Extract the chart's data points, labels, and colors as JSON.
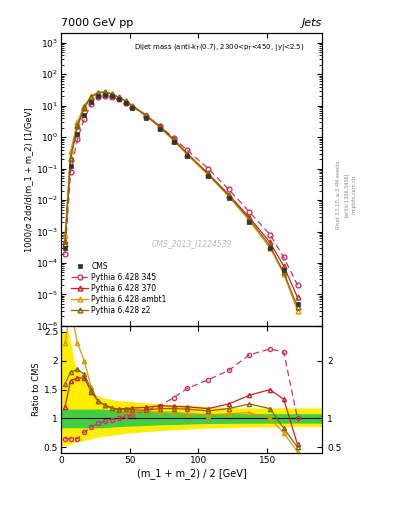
{
  "title_left": "7000 GeV pp",
  "title_right": "Jets",
  "watermark": "CMS_2013_I1224539",
  "ylabel_main": "1000/σ 2dσ/d(m_1 + m_2) [1/GeV]",
  "ylabel_ratio": "Ratio to CMS",
  "xlabel": "(m_1 + m_2) / 2 [GeV]",
  "xlim": [
    0,
    190
  ],
  "ylim_main": [
    1e-06,
    2000
  ],
  "ylim_ratio": [
    0.4,
    2.6
  ],
  "x_data": [
    3,
    7,
    12,
    17,
    22,
    27,
    32,
    37,
    42,
    47,
    52,
    62,
    72,
    82,
    92,
    107,
    122,
    137,
    152,
    162,
    172
  ],
  "cms_y": [
    0.0003,
    0.12,
    1.3,
    5.0,
    13.0,
    20.0,
    22.0,
    20.0,
    16.0,
    12.0,
    8.5,
    4.2,
    1.8,
    0.7,
    0.25,
    0.06,
    0.012,
    0.002,
    0.0003,
    6e-05,
    5e-06
  ],
  "p345_y": [
    0.0002,
    0.08,
    0.85,
    3.8,
    11.0,
    18.5,
    21.0,
    19.5,
    16.0,
    12.5,
    9.0,
    4.8,
    2.2,
    0.95,
    0.38,
    0.1,
    0.022,
    0.0042,
    0.0008,
    0.00015,
    2e-05
  ],
  "p370_y": [
    0.0004,
    0.2,
    2.2,
    8.5,
    19.0,
    26.0,
    27.0,
    23.5,
    18.5,
    14.0,
    10.0,
    5.0,
    2.2,
    0.85,
    0.3,
    0.07,
    0.015,
    0.0028,
    0.00045,
    8e-05,
    8e-06
  ],
  "pambt1_y": [
    0.0008,
    0.35,
    3.0,
    10.0,
    20.0,
    26.0,
    27.0,
    23.5,
    18.0,
    13.5,
    9.5,
    4.7,
    2.0,
    0.78,
    0.27,
    0.063,
    0.013,
    0.0022,
    0.0003,
    4.5e-05,
    3e-06
  ],
  "pz2_y": [
    0.0005,
    0.22,
    2.4,
    8.8,
    19.5,
    26.0,
    27.0,
    23.5,
    18.5,
    14.0,
    9.8,
    4.8,
    2.1,
    0.82,
    0.29,
    0.068,
    0.014,
    0.0025,
    0.00035,
    5e-05,
    4e-06
  ],
  "ratio_345": [
    0.65,
    0.65,
    0.65,
    0.76,
    0.85,
    0.92,
    0.95,
    0.98,
    1.0,
    1.04,
    1.06,
    1.14,
    1.22,
    1.36,
    1.52,
    1.67,
    1.83,
    2.1,
    2.2,
    2.15,
    1.0
  ],
  "ratio_370": [
    1.2,
    1.65,
    1.7,
    1.7,
    1.46,
    1.3,
    1.23,
    1.18,
    1.16,
    1.17,
    1.18,
    1.19,
    1.22,
    1.21,
    1.2,
    1.17,
    1.25,
    1.4,
    1.5,
    1.33,
    0.55
  ],
  "ratio_ambt1": [
    2.3,
    2.9,
    2.3,
    2.0,
    1.54,
    1.3,
    1.23,
    1.18,
    1.12,
    1.12,
    1.12,
    1.12,
    1.11,
    1.11,
    1.08,
    1.05,
    1.08,
    1.1,
    1.0,
    0.75,
    0.42
  ],
  "ratio_z2": [
    1.6,
    1.8,
    1.85,
    1.76,
    1.5,
    1.3,
    1.23,
    1.18,
    1.15,
    1.16,
    1.15,
    1.14,
    1.17,
    1.17,
    1.16,
    1.13,
    1.17,
    1.25,
    1.17,
    0.83,
    0.5
  ],
  "band_x": [
    0,
    5,
    10,
    15,
    20,
    25,
    30,
    40,
    50,
    70,
    100,
    130,
    160,
    190
  ],
  "band_green_low": [
    0.85,
    0.85,
    0.85,
    0.85,
    0.85,
    0.85,
    0.85,
    0.87,
    0.88,
    0.9,
    0.92,
    0.93,
    0.93,
    0.93
  ],
  "band_green_high": [
    1.15,
    1.15,
    1.15,
    1.15,
    1.15,
    1.15,
    1.15,
    1.13,
    1.12,
    1.1,
    1.08,
    1.07,
    1.07,
    1.07
  ],
  "band_yellow_low": [
    0.55,
    0.55,
    0.6,
    0.62,
    0.65,
    0.68,
    0.7,
    0.73,
    0.76,
    0.8,
    0.84,
    0.86,
    0.87,
    0.87
  ],
  "band_yellow_high": [
    2.5,
    2.5,
    1.9,
    1.7,
    1.5,
    1.4,
    1.35,
    1.3,
    1.28,
    1.24,
    1.2,
    1.17,
    1.17,
    1.17
  ],
  "color_cms": "#333333",
  "color_345": "#cc3366",
  "color_370": "#cc2222",
  "color_ambt1": "#dd9900",
  "color_z2": "#886600",
  "color_green": "#44cc44",
  "color_yellow": "#ffee00",
  "bg_color": "#ffffff"
}
